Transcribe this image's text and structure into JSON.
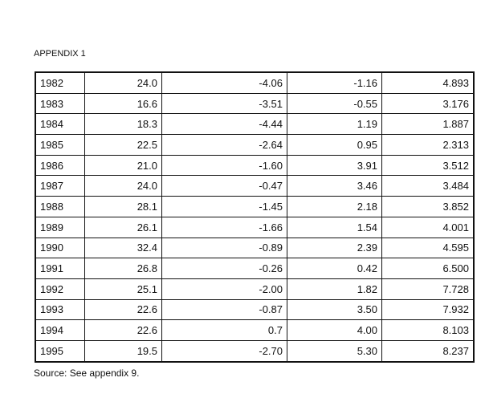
{
  "title": "APPENDIX 1",
  "table": {
    "rows": [
      [
        "1982",
        "24.0",
        "-4.06",
        "-1.16",
        "4.893"
      ],
      [
        "1983",
        "16.6",
        "-3.51",
        "-0.55",
        "3.176"
      ],
      [
        "1984",
        "18.3",
        "-4.44",
        "1.19",
        "1.887"
      ],
      [
        "1985",
        "22.5",
        "-2.64",
        "0.95",
        "2.313"
      ],
      [
        "1986",
        "21.0",
        "-1.60",
        "3.91",
        "3.512"
      ],
      [
        "1987",
        "24.0",
        "-0.47",
        "3.46",
        "3.484"
      ],
      [
        "1988",
        "28.1",
        "-1.45",
        "2.18",
        "3.852"
      ],
      [
        "1989",
        "26.1",
        "-1.66",
        "1.54",
        "4.001"
      ],
      [
        "1990",
        "32.4",
        "-0.89",
        "2.39",
        "4.595"
      ],
      [
        "1991",
        "26.8",
        "-0.26",
        "0.42",
        "6.500"
      ],
      [
        "1992",
        "25.1",
        "-2.00",
        "1.82",
        "7.728"
      ],
      [
        "1993",
        "22.6",
        "-0.87",
        "3.50",
        "7.932"
      ],
      [
        "1994",
        "22.6",
        "0.7",
        "4.00",
        "8.103"
      ],
      [
        "1995",
        "19.5",
        "-2.70",
        "5.30",
        "8.237"
      ]
    ]
  },
  "source": "Source: See appendix 9."
}
